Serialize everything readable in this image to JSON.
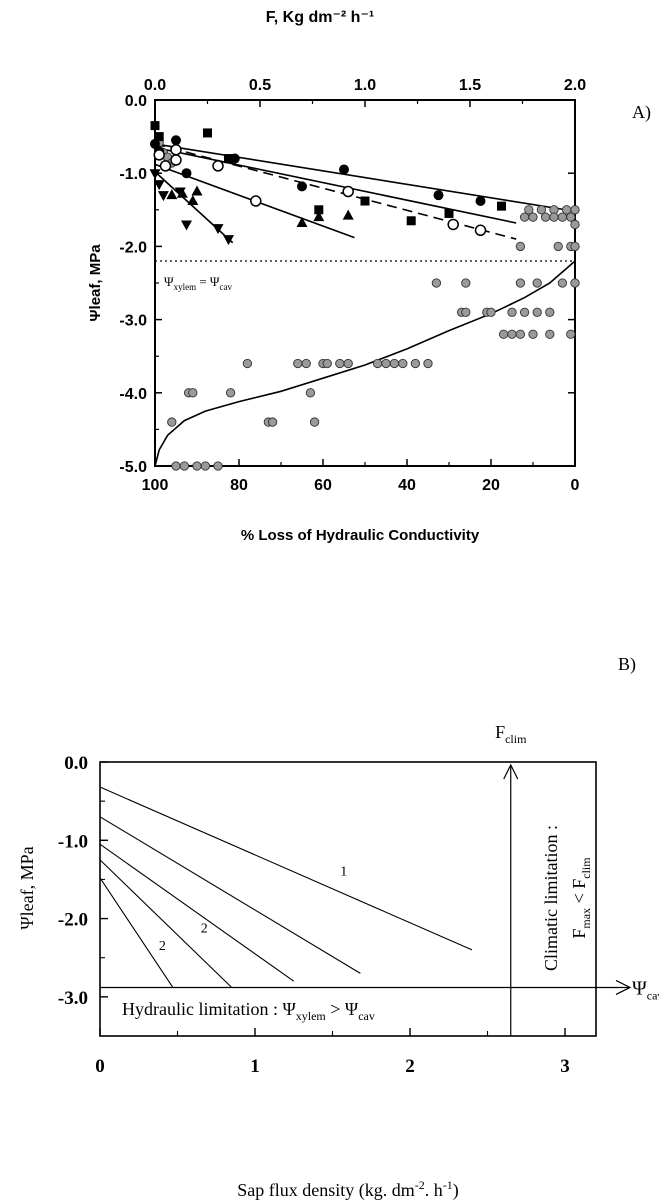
{
  "chart_data": [
    {
      "panel_label": "A)",
      "type": "scatter",
      "top_axis": {
        "label": "F, Kg dm⁻² h⁻¹",
        "range": [
          0,
          2
        ],
        "ticks": [
          "0.0",
          "0.5",
          "1.0",
          "1.5",
          "2.0"
        ]
      },
      "bottom_axis": {
        "label": "% Loss of Hydraulic Conductivity",
        "range": [
          100,
          0
        ],
        "ticks": [
          "100",
          "80",
          "60",
          "40",
          "20",
          "0"
        ]
      },
      "y_axis": {
        "label": "Ψleaf, MPa",
        "range": [
          -5,
          0
        ],
        "ticks": [
          "0.0",
          "-1.0",
          "-2.0",
          "-3.0",
          "-4.0",
          "-5.0"
        ]
      },
      "threshold": {
        "y": -2.2,
        "label_main": "Ψ",
        "label_sub": "xylem",
        "label_eq": " = Ψ",
        "label_sub2": "cav"
      },
      "series": [
        {
          "marker": "filled-circle",
          "points": [
            [
              0,
              -0.6
            ],
            [
              0.02,
              -0.7
            ],
            [
              0.1,
              -0.55
            ],
            [
              0.15,
              -1.0
            ],
            [
              0.38,
              -0.8
            ],
            [
              0.7,
              -1.18
            ],
            [
              0.9,
              -0.95
            ],
            [
              1.35,
              -1.3
            ],
            [
              1.55,
              -1.38
            ]
          ],
          "fit": [
            [
              0,
              -0.6
            ],
            [
              2.0,
              -1.52
            ]
          ],
          "dash": false
        },
        {
          "marker": "open-circle",
          "points": [
            [
              0.02,
              -0.75
            ],
            [
              0.05,
              -0.9
            ],
            [
              0.1,
              -0.68
            ],
            [
              0.1,
              -0.82
            ],
            [
              0.3,
              -0.9
            ],
            [
              0.48,
              -1.38
            ],
            [
              0.92,
              -1.25
            ],
            [
              1.42,
              -1.7
            ],
            [
              1.55,
              -1.78
            ]
          ],
          "fit": [
            [
              0,
              -0.65
            ],
            [
              1.72,
              -1.68
            ]
          ],
          "dash": false
        },
        {
          "marker": "filled-square",
          "points": [
            [
              0,
              -0.35
            ],
            [
              0.02,
              -0.5
            ],
            [
              0.25,
              -0.45
            ],
            [
              0.35,
              -0.8
            ],
            [
              0.78,
              -1.5
            ],
            [
              1.0,
              -1.38
            ],
            [
              1.22,
              -1.65
            ],
            [
              1.4,
              -1.55
            ],
            [
              1.65,
              -1.45
            ]
          ],
          "fit": [
            [
              0,
              -0.6
            ],
            [
              1.72,
              -1.9
            ]
          ],
          "dash": true
        },
        {
          "marker": "filled-triangle-up",
          "points": [
            [
              0.08,
              -1.3
            ],
            [
              0.13,
              -1.28
            ],
            [
              0.18,
              -1.38
            ],
            [
              0.2,
              -1.25
            ],
            [
              0.7,
              -1.68
            ],
            [
              0.78,
              -1.6
            ],
            [
              0.92,
              -1.58
            ]
          ],
          "fit": [
            [
              0,
              -0.88
            ],
            [
              0.95,
              -1.88
            ]
          ],
          "dash": false
        },
        {
          "marker": "filled-triangle-down",
          "points": [
            [
              0,
              -1.0
            ],
            [
              0.02,
              -1.15
            ],
            [
              0.04,
              -1.3
            ],
            [
              0.12,
              -1.25
            ],
            [
              0.15,
              -1.7
            ],
            [
              0.3,
              -1.75
            ],
            [
              0.35,
              -1.9
            ]
          ],
          "fit": [
            [
              0,
              -0.98
            ],
            [
              0.37,
              -1.95
            ]
          ],
          "dash": false
        }
      ],
      "vulnerability_points": [
        [
          99,
          -0.58
        ],
        [
          98,
          -0.72
        ],
        [
          97,
          -0.78
        ],
        [
          96,
          -0.86
        ],
        [
          96,
          -4.4
        ],
        [
          95,
          -5.0
        ],
        [
          93,
          -5.0
        ],
        [
          92,
          -4.0
        ],
        [
          91,
          -4.0
        ],
        [
          90,
          -5.0
        ],
        [
          88,
          -5.0
        ],
        [
          85,
          -5.0
        ],
        [
          82,
          -4.0
        ],
        [
          78,
          -3.6
        ],
        [
          73,
          -4.4
        ],
        [
          72,
          -4.4
        ],
        [
          66,
          -3.6
        ],
        [
          64,
          -3.6
        ],
        [
          63,
          -4.0
        ],
        [
          62,
          -4.4
        ],
        [
          60,
          -3.6
        ],
        [
          59,
          -3.6
        ],
        [
          56,
          -3.6
        ],
        [
          54,
          -3.6
        ],
        [
          47,
          -3.6
        ],
        [
          45,
          -3.6
        ],
        [
          43,
          -3.6
        ],
        [
          41,
          -3.6
        ],
        [
          38,
          -3.6
        ],
        [
          35,
          -3.6
        ],
        [
          33,
          -2.5
        ],
        [
          27,
          -2.9
        ],
        [
          26,
          -2.5
        ],
        [
          26,
          -2.9
        ],
        [
          21,
          -2.9
        ],
        [
          20,
          -2.9
        ],
        [
          17,
          -3.2
        ],
        [
          15,
          -2.9
        ],
        [
          15,
          -3.2
        ],
        [
          13,
          -2.0
        ],
        [
          13,
          -2.5
        ],
        [
          13,
          -3.2
        ],
        [
          12,
          -2.9
        ],
        [
          12,
          -1.6
        ],
        [
          11,
          -1.5
        ],
        [
          10,
          -1.6
        ],
        [
          10,
          -3.2
        ],
        [
          9,
          -2.5
        ],
        [
          9,
          -2.9
        ],
        [
          8,
          -1.5
        ],
        [
          7,
          -1.6
        ],
        [
          6,
          -2.9
        ],
        [
          6,
          -3.2
        ],
        [
          5,
          -1.5
        ],
        [
          5,
          -1.6
        ],
        [
          4,
          -2.0
        ],
        [
          3,
          -1.6
        ],
        [
          3,
          -2.5
        ],
        [
          2,
          -1.5
        ],
        [
          1,
          -1.6
        ],
        [
          1,
          -2.0
        ],
        [
          1,
          -3.2
        ],
        [
          0,
          -1.5
        ],
        [
          0,
          -1.7
        ],
        [
          0,
          -2.0
        ],
        [
          0,
          -2.5
        ]
      ],
      "vulnerability_curve": [
        [
          100,
          -5.0
        ],
        [
          99,
          -4.78
        ],
        [
          97,
          -4.58
        ],
        [
          93,
          -4.38
        ],
        [
          88,
          -4.25
        ],
        [
          80,
          -4.12
        ],
        [
          70,
          -3.98
        ],
        [
          60,
          -3.8
        ],
        [
          50,
          -3.62
        ],
        [
          40,
          -3.4
        ],
        [
          30,
          -3.15
        ],
        [
          20,
          -2.92
        ],
        [
          12,
          -2.7
        ],
        [
          6,
          -2.5
        ],
        [
          2,
          -2.3
        ],
        [
          0,
          -2.2
        ]
      ]
    },
    {
      "panel_label": "B)",
      "type": "line",
      "xlabel_main": "Sap flux density (kg. dm",
      "xlabel_sup1": "-2",
      "xlabel_mid": ". h",
      "xlabel_sup2": "-1",
      "xlabel_end": ")",
      "x_ticks": [
        "0",
        "1",
        "2",
        "3"
      ],
      "xlim": [
        0,
        3.2
      ],
      "ylabel": "Ψleaf, MPa",
      "y_ticks": [
        "0.0",
        "-1.0",
        "-2.0",
        "-3.0"
      ],
      "ylim": [
        -3.5,
        0
      ],
      "lines": [
        {
          "points": [
            [
              0,
              -0.32
            ],
            [
              2.4,
              -2.4
            ]
          ]
        },
        {
          "points": [
            [
              0,
              -0.7
            ],
            [
              1.68,
              -2.7
            ]
          ]
        },
        {
          "points": [
            [
              0,
              -1.05
            ],
            [
              1.25,
              -2.8
            ]
          ]
        },
        {
          "points": [
            [
              0,
              -1.25
            ],
            [
              0.85,
              -2.88
            ]
          ]
        },
        {
          "points": [
            [
              0,
              -1.48
            ],
            [
              0.47,
              -2.88
            ]
          ]
        }
      ],
      "line_labels": [
        {
          "text": "1",
          "x": 1.55,
          "y": -1.45
        },
        {
          "text": "2",
          "x": 0.65,
          "y": -2.18
        },
        {
          "text": "2",
          "x": 0.38,
          "y": -2.4
        }
      ],
      "cav_level": -2.88,
      "f_clim_x": 2.65,
      "psi_cav_label_main": "Ψ",
      "psi_cav_label_sub": "cav",
      "f_clim_label_main": "F",
      "f_clim_label_sub": "clim",
      "hydraulic_text": "Hydraulic limitation : Ψ",
      "hydraulic_sub1": "xylem",
      "hydraulic_mid": " > Ψ",
      "hydraulic_sub2": "cav",
      "climatic_line1": "Climatic limitation :",
      "climatic_f": "F",
      "climatic_max": "max",
      "climatic_lt": " < F",
      "climatic_clim": "clim"
    }
  ]
}
